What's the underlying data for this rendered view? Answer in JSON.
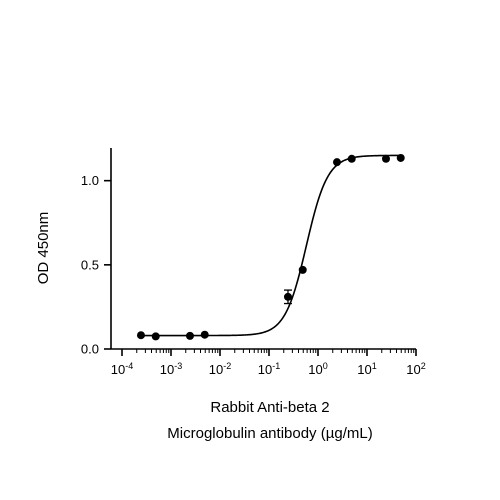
{
  "chart_data": {
    "type": "scatter",
    "title": "",
    "xlabel_lines": [
      "Rabbit Anti-beta 2",
      "Microglobulin antibody (µg/mL)"
    ],
    "ylabel": "OD 450nm",
    "x_scale": "log",
    "xlim": [
      0.0001,
      100
    ],
    "ylim": [
      0,
      1.2
    ],
    "x_ticks": [
      {
        "value": 0.0001,
        "base": "10",
        "exp": "-4"
      },
      {
        "value": 0.001,
        "base": "10",
        "exp": "-3"
      },
      {
        "value": 0.01,
        "base": "10",
        "exp": "-2"
      },
      {
        "value": 0.1,
        "base": "10",
        "exp": "-1"
      },
      {
        "value": 1,
        "base": "10",
        "exp": "0"
      },
      {
        "value": 10,
        "base": "10",
        "exp": "1"
      },
      {
        "value": 100,
        "base": "10",
        "exp": "2"
      }
    ],
    "y_ticks": [
      {
        "value": 0.0,
        "label": "0.0"
      },
      {
        "value": 0.5,
        "label": "0.5"
      },
      {
        "value": 1.0,
        "label": "1.0"
      }
    ],
    "grid": false,
    "legend": "none",
    "colors": {
      "points": "#000000",
      "curve": "#000000",
      "axes": "#000000"
    },
    "points": [
      {
        "x": 0.000244,
        "y": 0.082
      },
      {
        "x": 0.000488,
        "y": 0.075
      },
      {
        "x": 0.00244,
        "y": 0.078
      },
      {
        "x": 0.00488,
        "y": 0.085
      },
      {
        "x": 0.244,
        "y": 0.31,
        "err": 0.04
      },
      {
        "x": 0.488,
        "y": 0.47
      },
      {
        "x": 2.44,
        "y": 1.11
      },
      {
        "x": 4.88,
        "y": 1.13
      },
      {
        "x": 24.4,
        "y": 1.13
      },
      {
        "x": 48.8,
        "y": 1.135
      }
    ],
    "fit_curve": {
      "model": "4PL",
      "bottom": 0.08,
      "top": 1.15,
      "ec50": 0.58,
      "hill": 2.0
    }
  }
}
